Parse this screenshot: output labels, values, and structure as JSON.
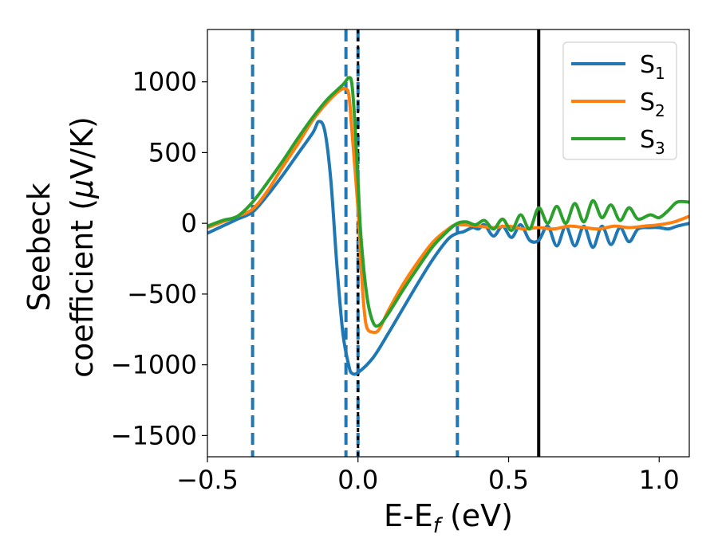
{
  "chart_data": {
    "type": "line",
    "xlabel": "E-E",
    "xlabel_sub": "f",
    "xlabel_unit": " (eV)",
    "ylabel_line1": "Seebeck",
    "ylabel_line2": "coefficient  (",
    "ylabel_mu": "μ",
    "ylabel_unit": "V/K)",
    "xlim": [
      -0.5,
      1.1
    ],
    "ylim": [
      -1650,
      1370
    ],
    "x_ticks": [
      -0.5,
      0.0,
      0.5,
      1.0
    ],
    "x_tick_labels": [
      "−0.5",
      "0.0",
      "0.5",
      "1.0"
    ],
    "y_ticks": [
      -1500,
      -1000,
      -500,
      0,
      500,
      1000
    ],
    "y_tick_labels": [
      "−1500",
      "−1000",
      "−500",
      "0",
      "500",
      "1000"
    ],
    "grid": false,
    "legend_placement": "top-right",
    "vertical_lines": [
      {
        "x": -0.35,
        "color": "#1f77b4",
        "style": "dashed"
      },
      {
        "x": -0.04,
        "color": "#1f77b4",
        "style": "dashed"
      },
      {
        "x": 0.0,
        "color": "#1f77b4",
        "style": "dashed"
      },
      {
        "x": 0.0,
        "color": "#000000",
        "style": "dotted"
      },
      {
        "x": 0.33,
        "color": "#1f77b4",
        "style": "dashed"
      },
      {
        "x": 0.6,
        "color": "#000000",
        "style": "solid"
      }
    ],
    "series": [
      {
        "name": "S",
        "sub": "1",
        "color": "#1f77b4",
        "points": [
          [
            -0.5,
            -70
          ],
          [
            -0.45,
            -20
          ],
          [
            -0.4,
            30
          ],
          [
            -0.35,
            80
          ],
          [
            -0.3,
            200
          ],
          [
            -0.25,
            340
          ],
          [
            -0.2,
            490
          ],
          [
            -0.15,
            640
          ],
          [
            -0.13,
            720
          ],
          [
            -0.11,
            650
          ],
          [
            -0.09,
            300
          ],
          [
            -0.07,
            -300
          ],
          [
            -0.05,
            -780
          ],
          [
            -0.03,
            -1010
          ],
          [
            -0.02,
            -1060
          ],
          [
            0.0,
            -1055
          ],
          [
            0.05,
            -950
          ],
          [
            0.1,
            -780
          ],
          [
            0.15,
            -600
          ],
          [
            0.2,
            -420
          ],
          [
            0.25,
            -250
          ],
          [
            0.3,
            -110
          ],
          [
            0.33,
            -70
          ],
          [
            0.35,
            -60
          ],
          [
            0.38,
            -30
          ],
          [
            0.4,
            -40
          ],
          [
            0.42,
            -10
          ],
          [
            0.45,
            -90
          ],
          [
            0.48,
            -20
          ],
          [
            0.51,
            -100
          ],
          [
            0.54,
            -10
          ],
          [
            0.57,
            -120
          ],
          [
            0.6,
            -120
          ],
          [
            0.63,
            -20
          ],
          [
            0.66,
            -160
          ],
          [
            0.69,
            -20
          ],
          [
            0.72,
            -160
          ],
          [
            0.75,
            -20
          ],
          [
            0.78,
            -170
          ],
          [
            0.81,
            -20
          ],
          [
            0.84,
            -150
          ],
          [
            0.87,
            -30
          ],
          [
            0.9,
            -130
          ],
          [
            0.93,
            -40
          ],
          [
            0.97,
            -30
          ],
          [
            1.0,
            -30
          ],
          [
            1.03,
            -40
          ],
          [
            1.06,
            -20
          ],
          [
            1.1,
            0
          ]
        ]
      },
      {
        "name": "S",
        "sub": "2",
        "color": "#ff7f0e",
        "points": [
          [
            -0.5,
            -30
          ],
          [
            -0.45,
            10
          ],
          [
            -0.4,
            50
          ],
          [
            -0.35,
            100
          ],
          [
            -0.3,
            230
          ],
          [
            -0.25,
            400
          ],
          [
            -0.2,
            560
          ],
          [
            -0.15,
            730
          ],
          [
            -0.1,
            860
          ],
          [
            -0.06,
            940
          ],
          [
            -0.04,
            950
          ],
          [
            -0.03,
            900
          ],
          [
            -0.02,
            650
          ],
          [
            0.0,
            100
          ],
          [
            0.01,
            -300
          ],
          [
            0.02,
            -600
          ],
          [
            0.03,
            -740
          ],
          [
            0.05,
            -770
          ],
          [
            0.07,
            -750
          ],
          [
            0.1,
            -620
          ],
          [
            0.15,
            -430
          ],
          [
            0.2,
            -270
          ],
          [
            0.25,
            -130
          ],
          [
            0.3,
            -40
          ],
          [
            0.33,
            -10
          ],
          [
            0.4,
            -20
          ],
          [
            0.45,
            -30
          ],
          [
            0.5,
            -20
          ],
          [
            0.55,
            -40
          ],
          [
            0.6,
            -30
          ],
          [
            0.65,
            -40
          ],
          [
            0.7,
            -20
          ],
          [
            0.75,
            -30
          ],
          [
            0.8,
            -40
          ],
          [
            0.85,
            -20
          ],
          [
            0.9,
            -30
          ],
          [
            0.95,
            -20
          ],
          [
            1.0,
            -10
          ],
          [
            1.05,
            10
          ],
          [
            1.1,
            50
          ]
        ]
      },
      {
        "name": "S",
        "sub": "3",
        "color": "#2ca02c",
        "points": [
          [
            -0.5,
            -20
          ],
          [
            -0.45,
            20
          ],
          [
            -0.4,
            50
          ],
          [
            -0.35,
            150
          ],
          [
            -0.3,
            290
          ],
          [
            -0.25,
            440
          ],
          [
            -0.2,
            600
          ],
          [
            -0.15,
            750
          ],
          [
            -0.1,
            880
          ],
          [
            -0.05,
            980
          ],
          [
            -0.03,
            1030
          ],
          [
            -0.02,
            980
          ],
          [
            -0.01,
            700
          ],
          [
            0.0,
            300
          ],
          [
            0.01,
            -100
          ],
          [
            0.03,
            -520
          ],
          [
            0.05,
            -700
          ],
          [
            0.07,
            -720
          ],
          [
            0.1,
            -640
          ],
          [
            0.15,
            -470
          ],
          [
            0.2,
            -310
          ],
          [
            0.25,
            -160
          ],
          [
            0.3,
            -50
          ],
          [
            0.33,
            0
          ],
          [
            0.36,
            10
          ],
          [
            0.39,
            -10
          ],
          [
            0.42,
            20
          ],
          [
            0.45,
            -40
          ],
          [
            0.48,
            30
          ],
          [
            0.51,
            -50
          ],
          [
            0.54,
            60
          ],
          [
            0.57,
            -40
          ],
          [
            0.6,
            110
          ],
          [
            0.63,
            0
          ],
          [
            0.66,
            120
          ],
          [
            0.69,
            0
          ],
          [
            0.72,
            140
          ],
          [
            0.75,
            10
          ],
          [
            0.78,
            160
          ],
          [
            0.81,
            40
          ],
          [
            0.84,
            130
          ],
          [
            0.87,
            20
          ],
          [
            0.9,
            110
          ],
          [
            0.93,
            30
          ],
          [
            0.97,
            60
          ],
          [
            1.0,
            40
          ],
          [
            1.03,
            90
          ],
          [
            1.06,
            150
          ],
          [
            1.1,
            150
          ]
        ]
      }
    ]
  }
}
